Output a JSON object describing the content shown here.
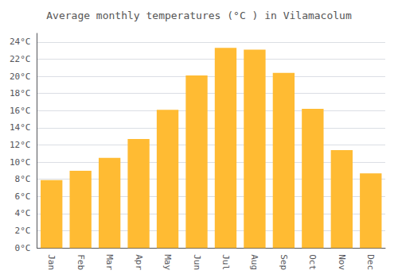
{
  "chart_data": {
    "type": "bar",
    "title": "Average monthly temperatures (°C ) in Vilamacolum",
    "categories": [
      "Jan",
      "Feb",
      "Mar",
      "Apr",
      "May",
      "Jun",
      "Jul",
      "Aug",
      "Sep",
      "Oct",
      "Nov",
      "Dec"
    ],
    "values": [
      7.9,
      9.0,
      10.5,
      12.7,
      16.1,
      20.1,
      23.3,
      23.1,
      20.4,
      16.2,
      11.4,
      8.7
    ],
    "color": "#FFBB33",
    "ylim": [
      0,
      25
    ],
    "yticks": [
      {
        "value": 0,
        "label": "0°C"
      },
      {
        "value": 2,
        "label": "2°C"
      },
      {
        "value": 4,
        "label": "4°C"
      },
      {
        "value": 6,
        "label": "6°C"
      },
      {
        "value": 8,
        "label": "8°C"
      },
      {
        "value": 10,
        "label": "10°C"
      },
      {
        "value": 12,
        "label": "12°C"
      },
      {
        "value": 14,
        "label": "14°C"
      },
      {
        "value": 16,
        "label": "16°C"
      },
      {
        "value": 18,
        "label": "18°C"
      },
      {
        "value": 20,
        "label": "20°C"
      },
      {
        "value": 22,
        "label": "22°C"
      },
      {
        "value": 24,
        "label": "24°C"
      }
    ],
    "grid": true
  }
}
